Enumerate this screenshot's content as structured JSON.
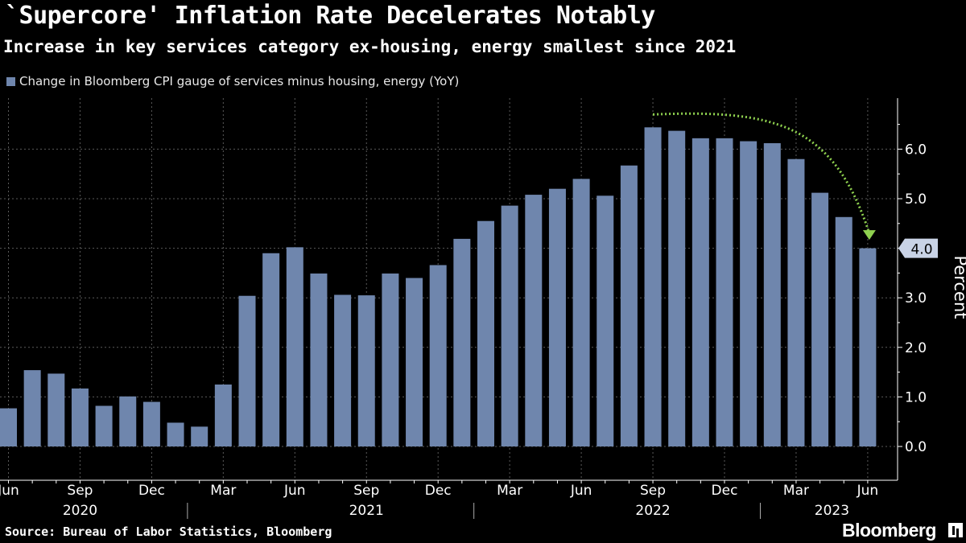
{
  "header": {
    "title": "`Supercore' Inflation Rate Decelerates Notably",
    "subtitle": "Increase in key services category ex-housing, energy smallest since 2021"
  },
  "footer": {
    "source": "Source: Bureau of Labor Statistics, Bloomberg",
    "brand": "Bloomberg"
  },
  "colors": {
    "background": "#000000",
    "bar": "#6f86ad",
    "grid": "#5a5a5a",
    "arrow": "#8fd14f"
  },
  "icons": {
    "brand_icon": "bloomberg-terminal-icon"
  },
  "chart_data": {
    "type": "bar",
    "series": [
      {
        "name": "Change in Bloomberg CPI gauge of services minus housing, energy (YoY)",
        "values": [
          0.77,
          1.54,
          1.47,
          1.17,
          0.82,
          1.01,
          0.9,
          0.48,
          0.4,
          1.25,
          3.04,
          3.9,
          4.02,
          3.49,
          3.06,
          3.05,
          3.49,
          3.4,
          3.66,
          4.19,
          4.55,
          4.86,
          5.08,
          5.2,
          5.4,
          5.06,
          5.67,
          6.44,
          6.37,
          6.22,
          6.22,
          6.16,
          6.12,
          5.8,
          5.12,
          4.63,
          4.0
        ]
      }
    ],
    "ylabel": "Percent",
    "ylim": [
      -0.6,
      7.0
    ],
    "yticks": [
      "0.0",
      "1.0",
      "2.0",
      "3.0",
      "4.0",
      "5.0",
      "6.0"
    ],
    "xlabels": [
      "Jun",
      "Sep",
      "Dec",
      "Mar",
      "Jun",
      "Sep",
      "Dec",
      "Mar",
      "Jun",
      "Sep",
      "Dec",
      "Mar",
      "Jun"
    ],
    "years": [
      "2020",
      "2021",
      "2022",
      "2023"
    ],
    "last_value_label": "4.0",
    "grid": true,
    "y_axis_side": "right"
  }
}
